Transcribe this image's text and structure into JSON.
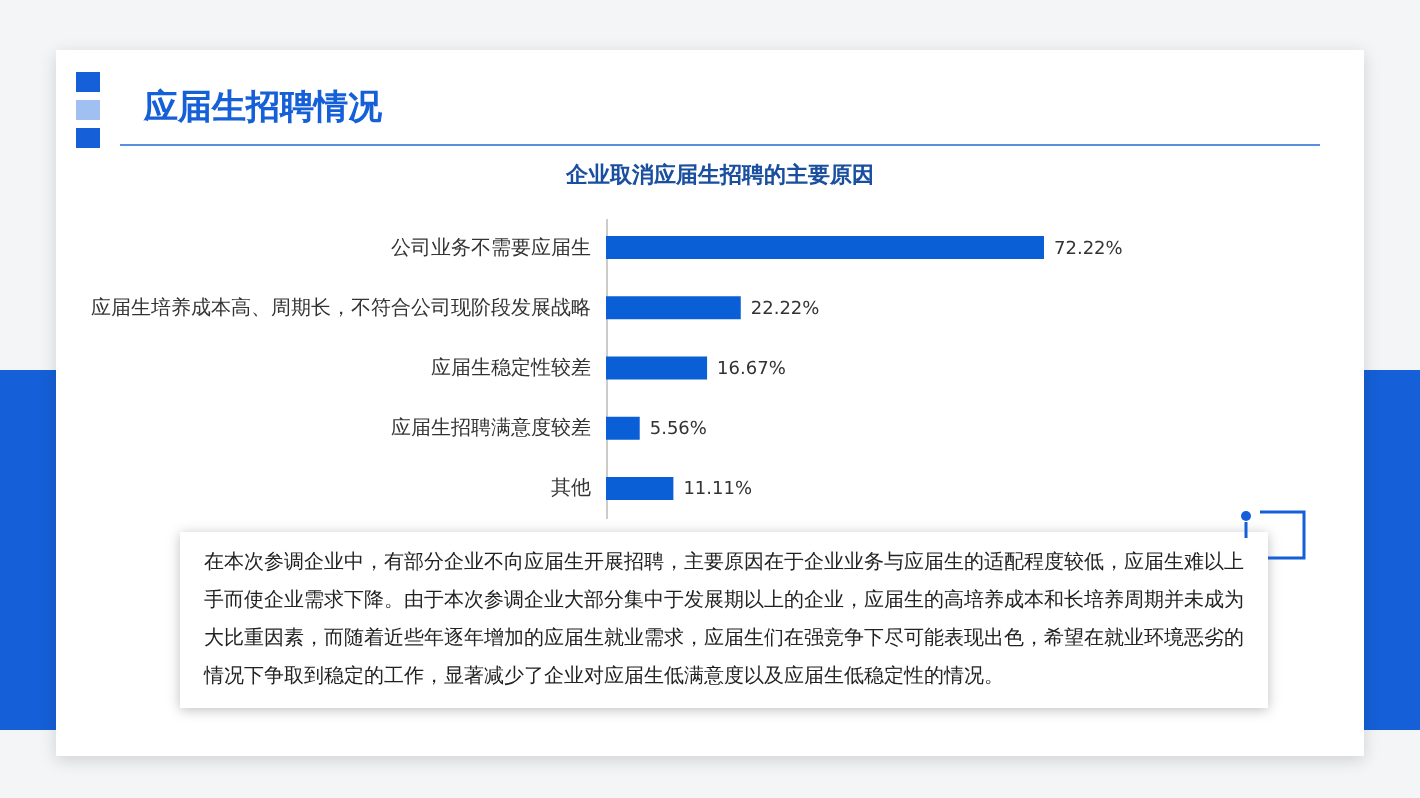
{
  "chart_data": {
    "type": "bar",
    "orientation": "horizontal",
    "title": "应届生招聘情况",
    "subtitle": "企业取消应届生招聘的主要原因",
    "categories": [
      "公司业务不需要应届生",
      "应届生培养成本高、周期长，不符合公司现阶段发展战略",
      "应届生稳定性较差",
      "应届生招聘满意度较差",
      "其他"
    ],
    "values": [
      72.22,
      22.22,
      16.67,
      5.56,
      11.11
    ],
    "value_labels": [
      "72.22%",
      "22.22%",
      "16.67%",
      "5.56%",
      "11.11%"
    ],
    "color": "#0a5fd6",
    "annotations": [
      "在本次参调企业中，有部分企业不向应届生开展招聘，主要原因在于企业业务与应届生的适配程度较低，应届生难以上手而使企业需求下降。由于本次参调企业大部分集中于发展期以上的企业，应届生的高培养成本和长培养周期并未成为大比重因素，而随着近些年逐年增加的应届生就业需求，应届生们在强竞争下尽可能表现出色，希望在就业环境恶劣的情况下争取到稳定的工作，显著减少了企业对应届生低满意度以及应届生低稳定性的情况。"
    ]
  }
}
